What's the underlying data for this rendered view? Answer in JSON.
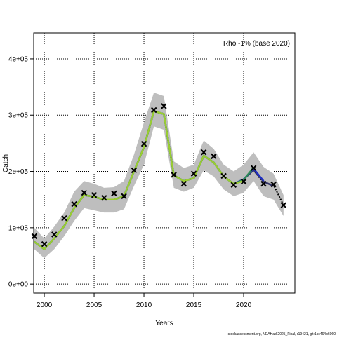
{
  "chart_data": {
    "type": "line",
    "annotation": "Rho -1% (base 2020)",
    "xlabel": "Years",
    "ylabel": "Catch",
    "footer": "stockassessment.org, NEAHad-2025_Final, r19421, git:1cc464b6060",
    "x": [
      1999,
      2000,
      2001,
      2002,
      2003,
      2004,
      2005,
      2006,
      2007,
      2008,
      2009,
      2010,
      2011,
      2012,
      2013,
      2014,
      2015,
      2016,
      2017,
      2018,
      2019,
      2020,
      2021,
      2022,
      2023,
      2024
    ],
    "observed": {
      "color": "#000000",
      "values": [
        85000,
        71000,
        88000,
        117000,
        142000,
        162000,
        158000,
        153000,
        161000,
        156000,
        202000,
        249000,
        309000,
        316000,
        194000,
        178000,
        196000,
        234000,
        227000,
        192000,
        176000,
        182000,
        206000,
        178000,
        177000,
        140000
      ]
    },
    "band": {
      "color": "#bebebe",
      "upper": [
        100000,
        81000,
        102000,
        127000,
        164000,
        183000,
        178000,
        171000,
        172000,
        183000,
        230000,
        287000,
        340000,
        334000,
        218000,
        206000,
        212000,
        255000,
        240000,
        212000,
        200000,
        212000,
        234000,
        208000,
        196000,
        158000
      ],
      "lower": [
        62000,
        46000,
        62000,
        85000,
        112000,
        135000,
        131000,
        127000,
        127000,
        133000,
        174000,
        212000,
        280000,
        274000,
        171000,
        164000,
        171000,
        202000,
        191000,
        168000,
        156000,
        162000,
        183000,
        156000,
        150000,
        121000
      ]
    },
    "series": [
      {
        "color": "#000000",
        "linestyle": "dotted",
        "values": [
          75000,
          62000,
          81000,
          103000,
          135000,
          158000,
          155000,
          150000,
          150000,
          156000,
          200000,
          243000,
          307000,
          302000,
          193000,
          183000,
          188000,
          228000,
          216000,
          191000,
          178000,
          186000,
          202000,
          180000,
          176000,
          140000
        ]
      },
      {
        "color": "#333366",
        "values": [
          75000,
          62000,
          81000,
          103000,
          135000,
          158000,
          155000,
          150000,
          150000,
          156000,
          200000,
          243000,
          307000,
          302000,
          193000,
          183000,
          188000,
          228000,
          216000,
          191000,
          178000,
          186000,
          203000,
          182000,
          174000,
          null
        ]
      },
      {
        "color": "#2030c0",
        "values": [
          75000,
          62000,
          81000,
          103000,
          135000,
          158000,
          155000,
          150000,
          150000,
          156000,
          200000,
          243000,
          307000,
          302000,
          193000,
          183000,
          188000,
          228000,
          216000,
          191000,
          178000,
          186000,
          205000,
          183000,
          null,
          null
        ]
      },
      {
        "color": "#2e8b57",
        "values": [
          75000,
          62000,
          81000,
          103000,
          135000,
          158000,
          155000,
          150000,
          150000,
          156000,
          200000,
          243000,
          307000,
          302000,
          193000,
          183000,
          188000,
          228000,
          216000,
          191000,
          178000,
          185000,
          207000,
          null,
          null,
          null
        ]
      },
      {
        "color": "#9acd32",
        "values": [
          75000,
          62000,
          81000,
          103000,
          135000,
          158000,
          155000,
          150000,
          150000,
          156000,
          200000,
          243000,
          307000,
          302000,
          193000,
          183000,
          188000,
          228000,
          216000,
          191000,
          178000,
          183000,
          null,
          null,
          null,
          null
        ]
      }
    ],
    "xlim": [
      1998.94,
      2025.14
    ],
    "xticks": [
      2000,
      2005,
      2010,
      2015,
      2020
    ],
    "ylim": [
      -16000,
      446000
    ],
    "yticks": [
      {
        "value": 0,
        "label": "0e+00"
      },
      {
        "value": 100000,
        "label": "1e+05"
      },
      {
        "value": 200000,
        "label": "2e+05"
      },
      {
        "value": 300000,
        "label": "3e+05"
      },
      {
        "value": 400000,
        "label": "4e+05"
      }
    ],
    "grid": true
  }
}
